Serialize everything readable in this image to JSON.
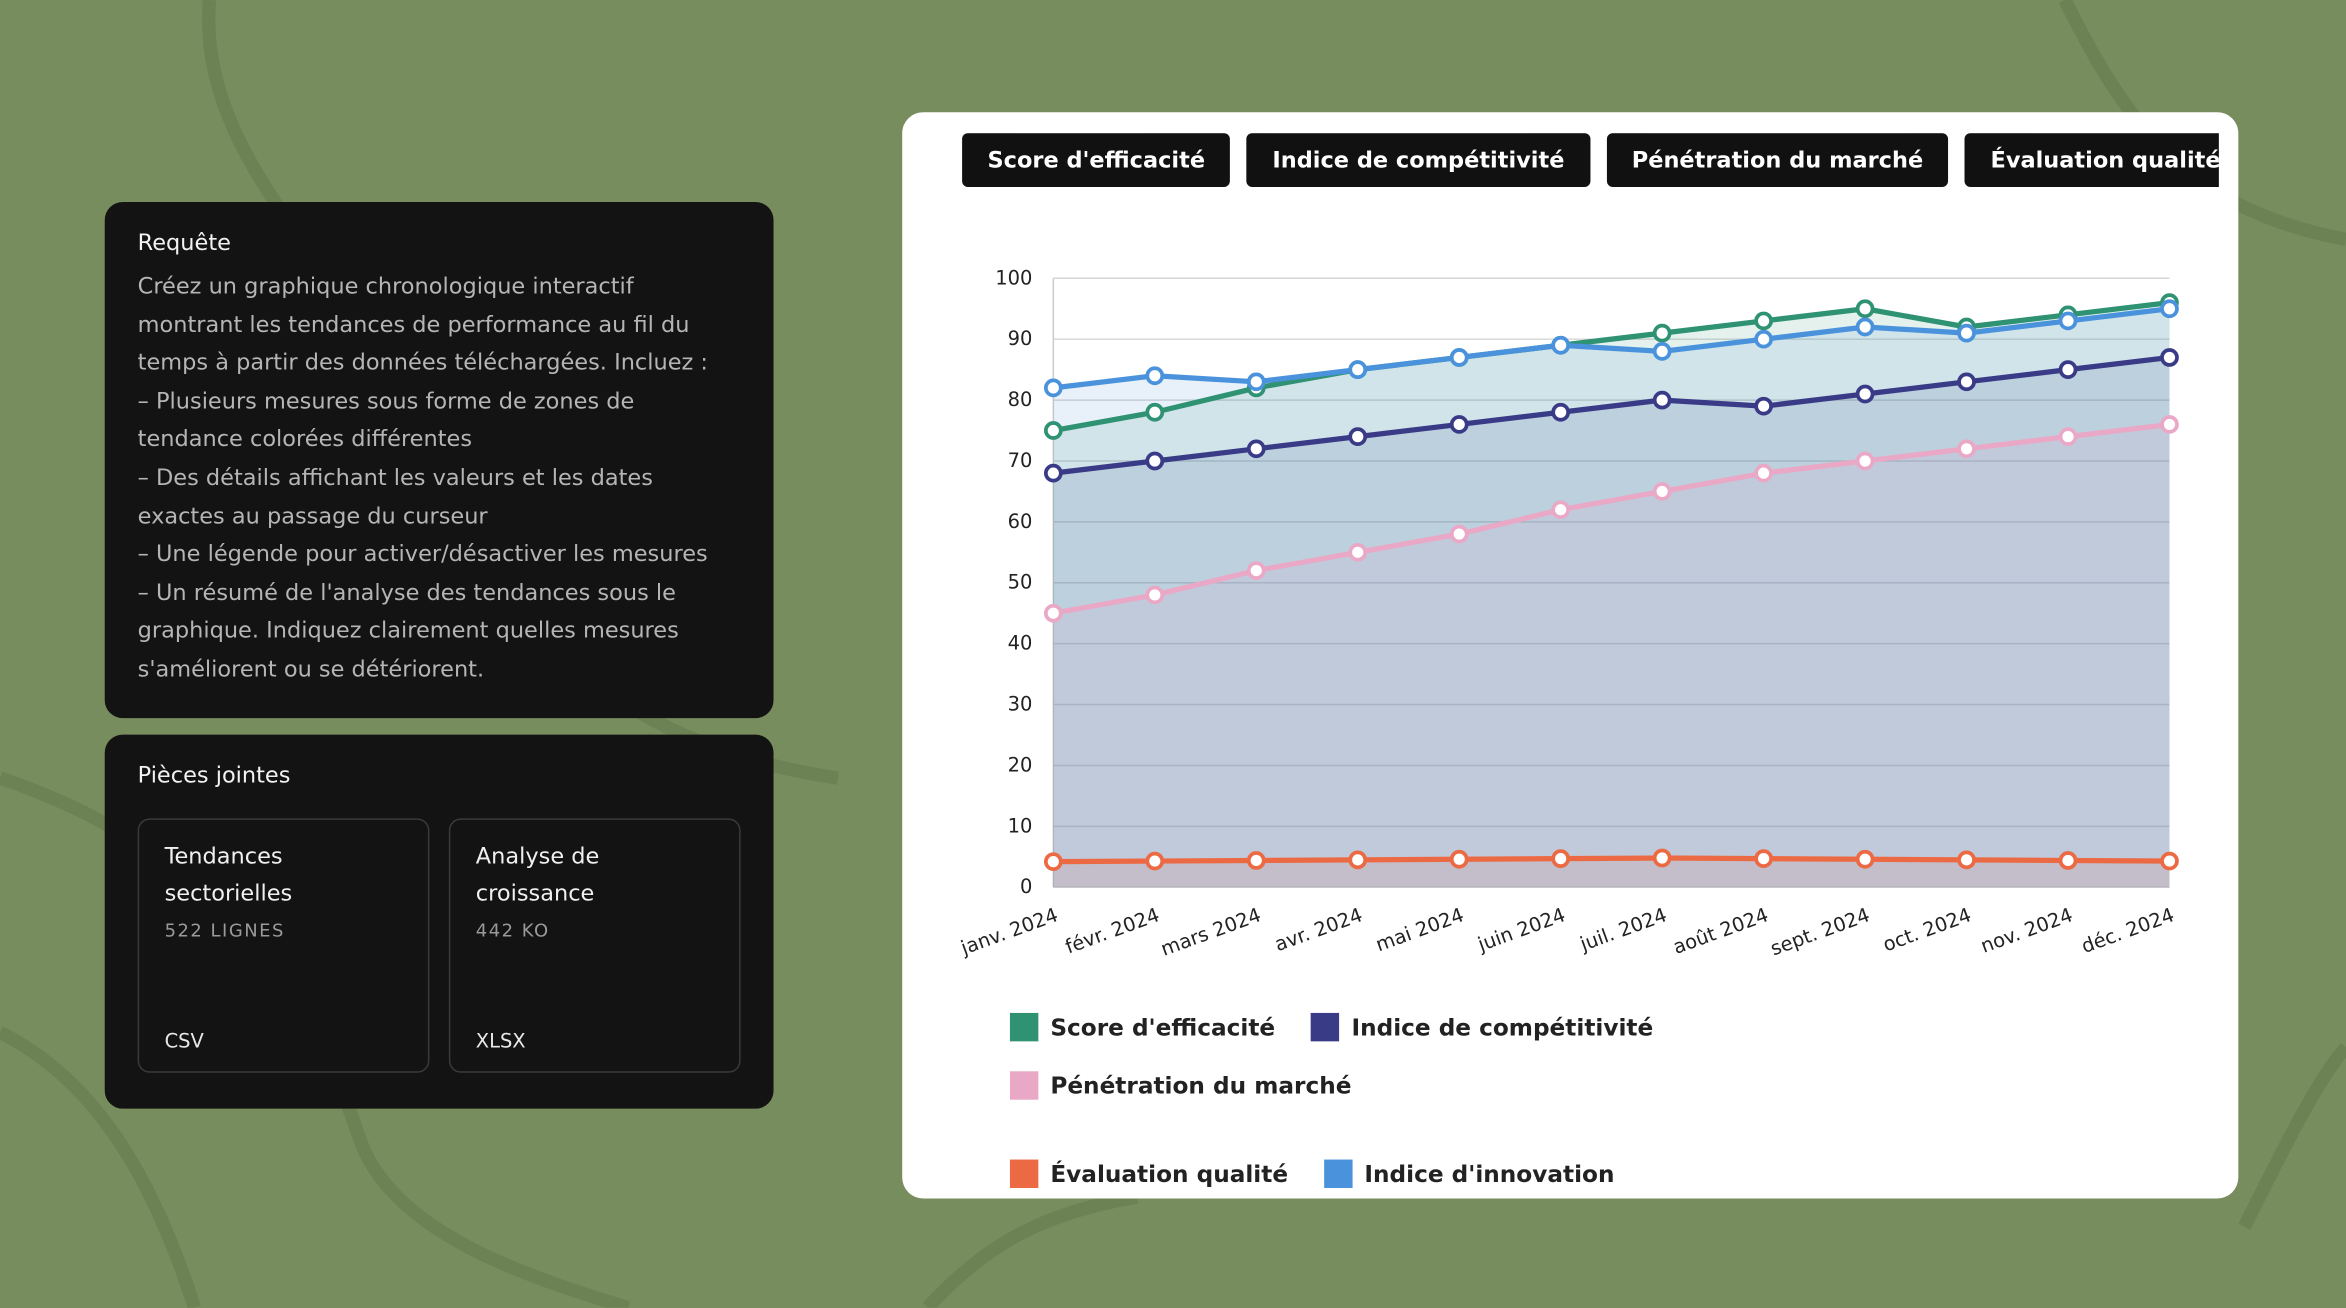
{
  "request": {
    "title": "Requête",
    "paragraphs": [
      "Créez un graphique chronologique interactif montrant les tendances de performance au fil du temps à partir des données téléchargées. Incluez :",
      "– Plusieurs mesures sous forme de zones de tendance colorées différentes",
      "– Des détails affichant les valeurs et les dates exactes au passage du curseur",
      "– Une légende pour activer/désactiver les mesures",
      "– Un résumé de l'analyse des tendances sous le graphique. Indiquez clairement quelles mesures s'améliorent ou se détériorent."
    ]
  },
  "attachments": {
    "title": "Pièces jointes",
    "files": [
      {
        "name": "Tendances sectorielles",
        "meta": "522 LIGNES",
        "type": "CSV"
      },
      {
        "name": "Analyse de croissance",
        "meta": "442 KO",
        "type": "XLSX"
      }
    ]
  },
  "chart_data": {
    "type": "line",
    "area": true,
    "categories": [
      "janv. 2024",
      "févr. 2024",
      "mars 2024",
      "avr. 2024",
      "mai 2024",
      "juin 2024",
      "juil. 2024",
      "août 2024",
      "sept. 2024",
      "oct. 2024",
      "nov. 2024",
      "déc. 2024"
    ],
    "series": [
      {
        "name": "Score d'efficacité",
        "color": "#2e9273",
        "values": [
          75,
          78,
          82,
          85,
          87,
          89,
          91,
          93,
          95,
          92,
          94,
          96
        ]
      },
      {
        "name": "Indice de compétitivité",
        "color": "#3a3b87",
        "values": [
          68,
          70,
          72,
          74,
          76,
          78,
          80,
          79,
          81,
          83,
          85,
          87
        ]
      },
      {
        "name": "Pénétration du marché",
        "color": "#e9a9c6",
        "values": [
          45,
          48,
          52,
          55,
          58,
          62,
          65,
          68,
          70,
          72,
          74,
          76
        ]
      },
      {
        "name": "Évaluation qualité",
        "color": "#ec6a43",
        "values": [
          4.2,
          4.3,
          4.4,
          4.5,
          4.6,
          4.7,
          4.8,
          4.7,
          4.6,
          4.5,
          4.4,
          4.3
        ]
      },
      {
        "name": "Indice d'innovation",
        "color": "#4a93dc",
        "values": [
          82,
          84,
          83,
          85,
          87,
          89,
          88,
          90,
          92,
          91,
          93,
          95
        ]
      }
    ],
    "ylim": [
      0,
      100
    ],
    "yticks": [
      0,
      10,
      20,
      30,
      40,
      50,
      60,
      70,
      80,
      90,
      100
    ],
    "grid": true,
    "legend": "bottom"
  }
}
